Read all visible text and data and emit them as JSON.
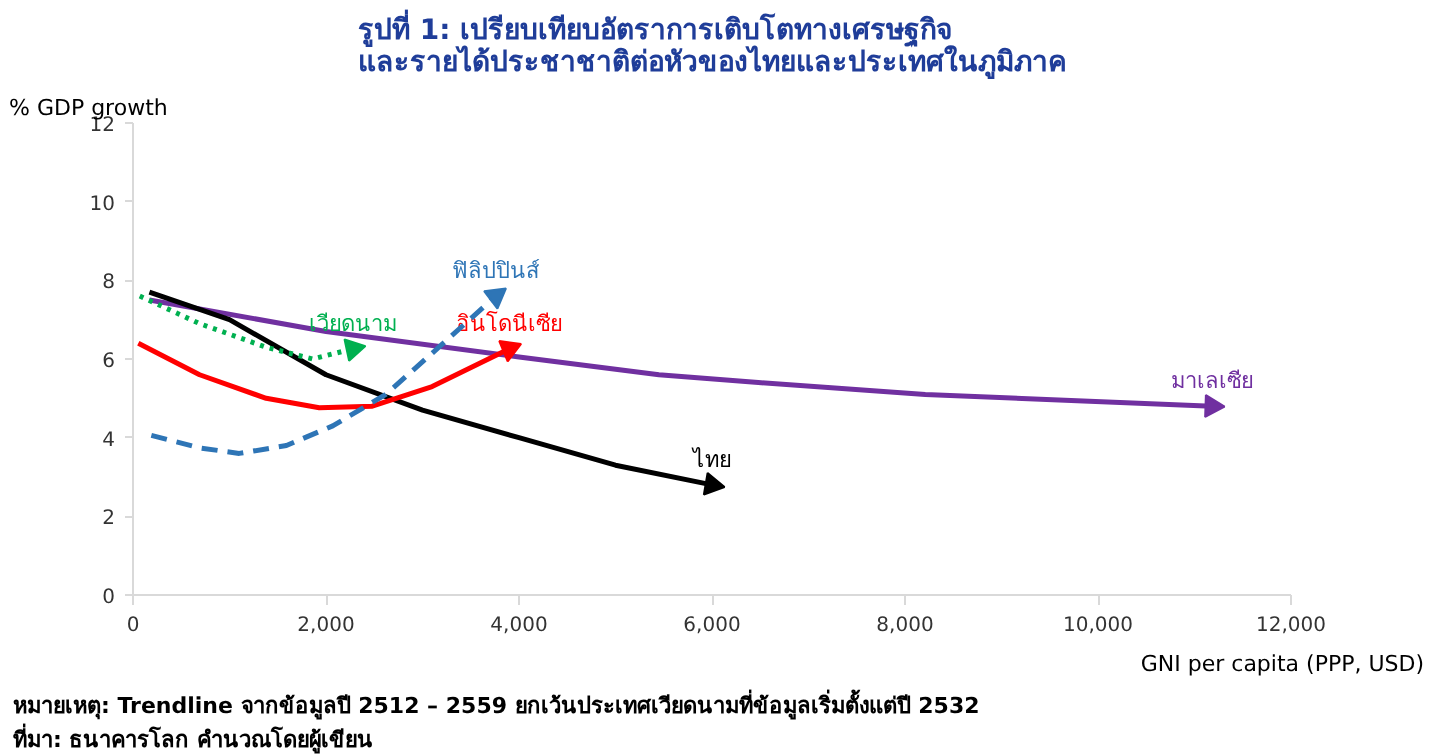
{
  "chart_data": {
    "type": "line",
    "title": "รูปที่ 1: เปรียบเทียบอัตราการเติบโตทางเศรษฐกิจ\nและรายได้ประชาชาติต่อหัวของไทยและประเทศในภูมิภาค",
    "xlabel": "GNI per capita (PPP,  USD)",
    "ylabel": "% GDP growth",
    "xlim": [
      0,
      12000
    ],
    "xticks": [
      {
        "value": 0,
        "label": "0"
      },
      {
        "value": 2000,
        "label": "2,000"
      },
      {
        "value": 4000,
        "label": "4,000"
      },
      {
        "value": 6000,
        "label": "6,000"
      },
      {
        "value": 8000,
        "label": "8,000"
      },
      {
        "value": 10000,
        "label": "10,000"
      },
      {
        "value": 12000,
        "label": "12,000"
      }
    ],
    "ylim": [
      0,
      12
    ],
    "yticks": [
      0,
      2,
      4,
      6,
      8,
      10,
      12
    ],
    "grid": false,
    "legend": false,
    "annotations": [
      "หมายเหตุ: Trendline จากข้อมูลปี 2512 – 2559 ยกเว้นประเทศเวียดนามที่ข้อมูลเริ่มตั้งแต่ปี 2532",
      "ที่มา: ธนาคารโลก คำนวณโดยผู้เขียน"
    ],
    "series": [
      {
        "name": "มาเลเซีย",
        "color": "#7030a0",
        "line_style": "solid",
        "x": [
          170,
          2000,
          4000,
          5450,
          6480,
          8210,
          11180
        ],
        "values": [
          7.5,
          6.7,
          6.05,
          5.6,
          5.4,
          5.1,
          4.8
        ]
      },
      {
        "name": "ไทย",
        "color": "#000000",
        "line_style": "solid",
        "x": [
          170,
          1000,
          2000,
          3000,
          4000,
          5000,
          6000
        ],
        "values": [
          7.7,
          7.0,
          5.6,
          4.7,
          4.0,
          3.3,
          2.8
        ]
      },
      {
        "name": "อินโดนีเซีย",
        "color": "#ff0000",
        "line_style": "solid",
        "x": [
          55,
          690,
          1380,
          1930,
          2480,
          3100,
          3900
        ],
        "values": [
          6.4,
          5.6,
          5.0,
          4.76,
          4.8,
          5.3,
          6.26
        ]
      },
      {
        "name": "ฟิลิปปินส์",
        "color": "#2e75b6",
        "line_style": "dashed",
        "x": [
          190,
          690,
          1100,
          1590,
          2070,
          2620,
          3170,
          3760
        ],
        "values": [
          4.06,
          3.74,
          3.6,
          3.8,
          4.3,
          5.1,
          6.3,
          7.6
        ]
      },
      {
        "name": "เวียดนาม",
        "color": "#00b050",
        "line_style": "dotted",
        "x": [
          70,
          690,
          1380,
          1860,
          2280
        ],
        "values": [
          7.6,
          6.9,
          6.3,
          6.0,
          6.26
        ]
      }
    ]
  }
}
